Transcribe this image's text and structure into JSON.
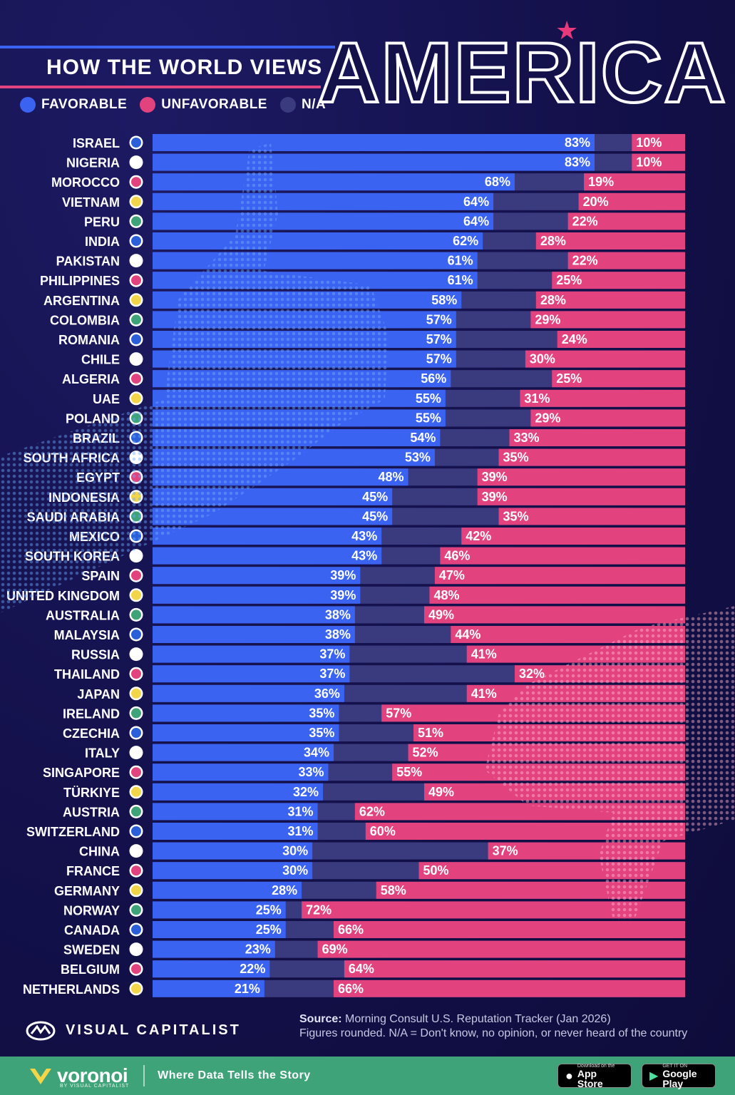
{
  "title": {
    "lead": "HOW THE WORLD VIEWS",
    "main": "AMERICA"
  },
  "legend": [
    {
      "label": "FAVORABLE",
      "color": "#3b63f2"
    },
    {
      "label": "UNFAVORABLE",
      "color": "#e2437f"
    },
    {
      "label": "N/A",
      "color": "#3a3a7e"
    }
  ],
  "chart_data": {
    "type": "bar",
    "stacked": true,
    "orientation": "horizontal",
    "categories": [
      "ISRAEL",
      "NIGERIA",
      "MOROCCO",
      "VIETNAM",
      "PERU",
      "INDIA",
      "PAKISTAN",
      "PHILIPPINES",
      "ARGENTINA",
      "COLOMBIA",
      "ROMANIA",
      "CHILE",
      "ALGERIA",
      "UAE",
      "POLAND",
      "BRAZIL",
      "SOUTH AFRICA",
      "EGYPT",
      "INDONESIA",
      "SAUDI ARABIA",
      "MEXICO",
      "SOUTH KOREA",
      "SPAIN",
      "UNITED KINGDOM",
      "AUSTRALIA",
      "MALAYSIA",
      "RUSSIA",
      "THAILAND",
      "JAPAN",
      "IRELAND",
      "CZECHIA",
      "ITALY",
      "SINGAPORE",
      "TÜRKIYE",
      "AUSTRIA",
      "SWITZERLAND",
      "CHINA",
      "FRANCE",
      "GERMANY",
      "NORWAY",
      "CANADA",
      "SWEDEN",
      "BELGIUM",
      "NETHERLANDS"
    ],
    "series": [
      {
        "name": "FAVORABLE",
        "color": "#3b63f2",
        "values": [
          83,
          83,
          68,
          64,
          64,
          62,
          61,
          61,
          58,
          57,
          57,
          57,
          56,
          55,
          55,
          54,
          53,
          48,
          45,
          45,
          43,
          43,
          39,
          39,
          38,
          38,
          37,
          37,
          36,
          35,
          35,
          34,
          33,
          32,
          31,
          31,
          30,
          30,
          28,
          25,
          25,
          23,
          22,
          21
        ]
      },
      {
        "name": "UNFAVORABLE",
        "color": "#e2437f",
        "values": [
          10,
          10,
          19,
          20,
          22,
          28,
          22,
          25,
          28,
          29,
          24,
          30,
          25,
          31,
          29,
          33,
          35,
          39,
          39,
          35,
          42,
          46,
          47,
          48,
          49,
          44,
          41,
          32,
          41,
          57,
          51,
          52,
          55,
          49,
          62,
          60,
          37,
          50,
          58,
          72,
          66,
          69,
          64,
          66
        ]
      }
    ],
    "na_color": "#3a3a7e",
    "value_suffix": "%",
    "xlim": [
      0,
      100
    ]
  },
  "source": {
    "label": "Source:",
    "text": "Morning Consult U.S. Reputation Tracker (Jan 2026)",
    "note": "Figures rounded. N/A = Don't know, no opinion, or never heard of the country"
  },
  "brand": {
    "name": "VISUAL CAPITALIST"
  },
  "footer": {
    "voronoi": "voronoi",
    "voronoi_sub": "BY VISUAL CAPITALIST",
    "tagline": "Where Data Tells the Story",
    "app_store_small": "Download on the",
    "app_store": "App Store",
    "google_small": "GET IT ON",
    "google": "Google Play"
  }
}
